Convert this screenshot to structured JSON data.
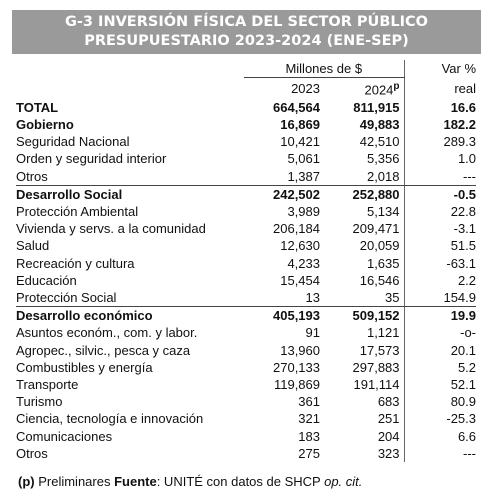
{
  "header": {
    "line1": "G-3   INVERSIÓN FÍSICA DEL SECTOR PÚBLICO",
    "line2": "PRESUPUESTARIO 2023-2024 (ENE-SEP)"
  },
  "columns": {
    "group_label": "Millones de $",
    "var_label_1": "Var %",
    "var_label_2": "real",
    "year1": "2023",
    "year2": "2024",
    "year2_suffix": "p"
  },
  "rows": [
    {
      "label": "TOTAL",
      "v2023": "664,564",
      "v2024": "811,915",
      "var": "16.6"
    },
    {
      "label": "Gobierno",
      "v2023": "16,869",
      "v2024": "49,883",
      "var": "182.2"
    },
    {
      "label": "Seguridad Nacional",
      "v2023": "10,421",
      "v2024": "42,510",
      "var": "289.3"
    },
    {
      "label": "Orden y seguridad interior",
      "v2023": "5,061",
      "v2024": "5,356",
      "var": "1.0"
    },
    {
      "label": "Otros",
      "v2023": "1,387",
      "v2024": "2,018",
      "var": "---"
    },
    {
      "label": "Desarrollo Social",
      "v2023": "242,502",
      "v2024": "252,880",
      "var": "-0.5"
    },
    {
      "label": "Protección Ambiental",
      "v2023": "3,989",
      "v2024": "5,134",
      "var": "22.8"
    },
    {
      "label": "Vivienda y servs. a la comunidad",
      "v2023": "206,184",
      "v2024": "209,471",
      "var": "-3.1"
    },
    {
      "label": "Salud",
      "v2023": "12,630",
      "v2024": "20,059",
      "var": "51.5"
    },
    {
      "label": "Recreación y cultura",
      "v2023": "4,233",
      "v2024": "1,635",
      "var": "-63.1"
    },
    {
      "label": "Educación",
      "v2023": "15,454",
      "v2024": "16,546",
      "var": "2.2"
    },
    {
      "label": "Protección Social",
      "v2023": "13",
      "v2024": "35",
      "var": "154.9"
    },
    {
      "label": "Desarrollo económico",
      "v2023": "405,193",
      "v2024": "509,152",
      "var": "19.9"
    },
    {
      "label": "Asuntos económ., com. y labor.",
      "v2023": "91",
      "v2024": "1,121",
      "var": "-o-"
    },
    {
      "label": "Agropec., silvic., pesca y caza",
      "v2023": "13,960",
      "v2024": "17,573",
      "var": "20.1"
    },
    {
      "label": "Combustibles y energía",
      "v2023": "270,133",
      "v2024": "297,883",
      "var": "5.2"
    },
    {
      "label": "Transporte",
      "v2023": "119,869",
      "v2024": "191,114",
      "var": "52.1"
    },
    {
      "label": "Turismo",
      "v2023": "361",
      "v2024": "683",
      "var": "80.9"
    },
    {
      "label": "Ciencia, tecnología e innovación",
      "v2023": "321",
      "v2024": "251",
      "var": "-25.3"
    },
    {
      "label": "Comunicaciones",
      "v2023": "183",
      "v2024": "204",
      "var": "6.6"
    },
    {
      "label": "Otros",
      "v2023": "275",
      "v2024": "323",
      "var": "---"
    }
  ],
  "footer": {
    "prelim_key": "(p)",
    "prelim_text": " Preliminares ",
    "source_label": "Fuente",
    "source_text": ": UNITÉ con datos de SHCP ",
    "source_italic": "op. cit."
  }
}
